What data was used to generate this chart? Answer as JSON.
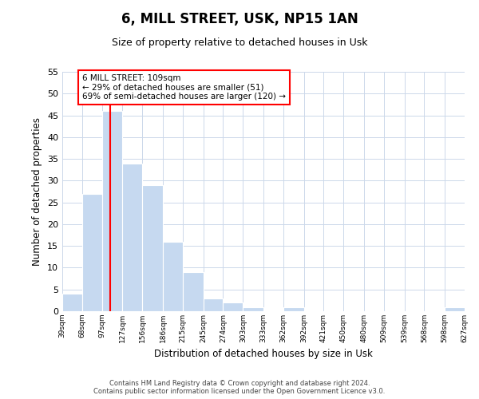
{
  "title": "6, MILL STREET, USK, NP15 1AN",
  "subtitle": "Size of property relative to detached houses in Usk",
  "xlabel": "Distribution of detached houses by size in Usk",
  "ylabel": "Number of detached properties",
  "bar_edges": [
    39,
    68,
    97,
    127,
    156,
    186,
    215,
    245,
    274,
    303,
    333,
    362,
    392,
    421,
    450,
    480,
    509,
    539,
    568,
    598,
    627
  ],
  "bar_heights": [
    4,
    27,
    46,
    34,
    29,
    16,
    9,
    3,
    2,
    1,
    0,
    1,
    0,
    0,
    0,
    0,
    0,
    0,
    0,
    1
  ],
  "bar_color": "#c6d9f0",
  "bar_edgecolor": "white",
  "property_line_x": 109,
  "property_line_color": "red",
  "ylim": [
    0,
    55
  ],
  "yticks": [
    0,
    5,
    10,
    15,
    20,
    25,
    30,
    35,
    40,
    45,
    50,
    55
  ],
  "annotation_text": "6 MILL STREET: 109sqm\n← 29% of detached houses are smaller (51)\n69% of semi-detached houses are larger (120) →",
  "annotation_box_color": "white",
  "annotation_box_edgecolor": "red",
  "footer_line1": "Contains HM Land Registry data © Crown copyright and database right 2024.",
  "footer_line2": "Contains public sector information licensed under the Open Government Licence v3.0.",
  "bg_color": "white",
  "grid_color": "#ccd8ea",
  "tick_labels": [
    "39sqm",
    "68sqm",
    "97sqm",
    "127sqm",
    "156sqm",
    "186sqm",
    "215sqm",
    "245sqm",
    "274sqm",
    "303sqm",
    "333sqm",
    "362sqm",
    "392sqm",
    "421sqm",
    "450sqm",
    "480sqm",
    "509sqm",
    "539sqm",
    "568sqm",
    "598sqm",
    "627sqm"
  ],
  "title_fontsize": 12,
  "subtitle_fontsize": 9,
  "ylabel_text": "Number of detached properties"
}
